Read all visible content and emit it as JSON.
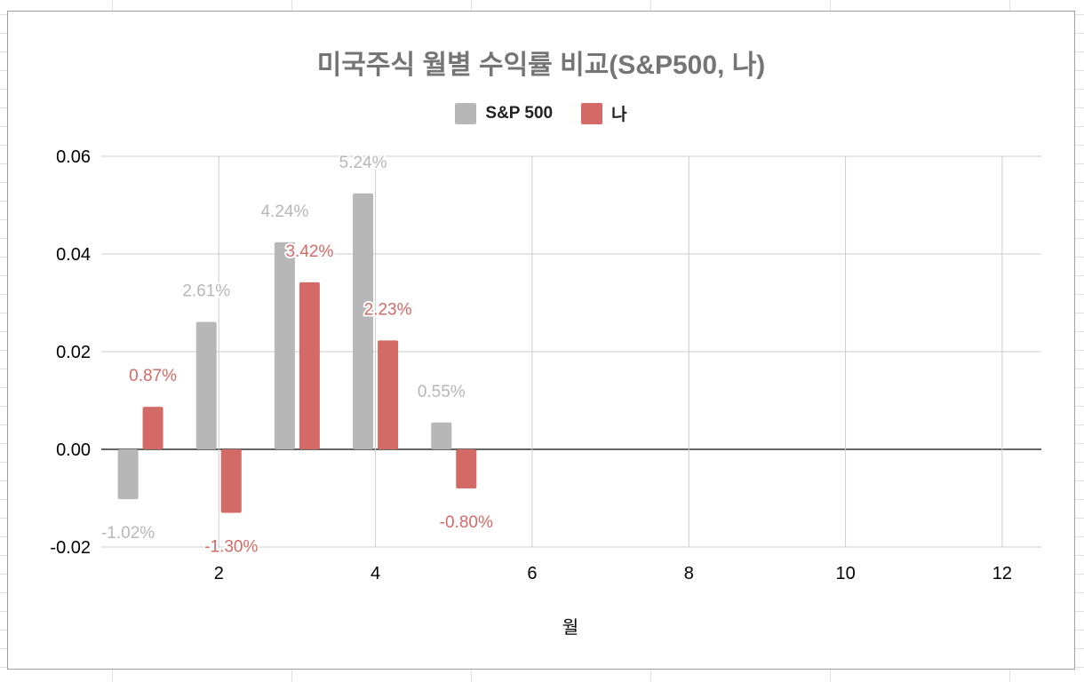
{
  "chart_data": {
    "type": "bar",
    "title": "미국주식 월별 수익률 비교(S&P500, 나)",
    "xlabel": "월",
    "ylabel": "",
    "x_ticks": [
      "2",
      "4",
      "6",
      "8",
      "10",
      "12"
    ],
    "y_ticks": [
      "0.06",
      "0.04",
      "0.02",
      "0.00",
      "-0.02"
    ],
    "xlim": [
      0.5,
      12.5
    ],
    "ylim": [
      -0.02,
      0.06
    ],
    "grid": true,
    "legend_position": "top",
    "categories": [
      1,
      2,
      3,
      4,
      5
    ],
    "series": [
      {
        "name": "S&P 500",
        "color": "#b7b7b7",
        "values": [
          -0.0102,
          0.0261,
          0.0424,
          0.0524,
          0.0055
        ],
        "labels": [
          "-1.02%",
          "2.61%",
          "4.24%",
          "5.24%",
          "0.55%"
        ]
      },
      {
        "name": "나",
        "color": "#d46a66",
        "values": [
          0.0087,
          -0.013,
          0.0342,
          0.0223,
          -0.008
        ],
        "labels": [
          "0.87%",
          "-1.30%",
          "3.42%",
          "2.23%",
          "-0.80%"
        ]
      }
    ]
  }
}
